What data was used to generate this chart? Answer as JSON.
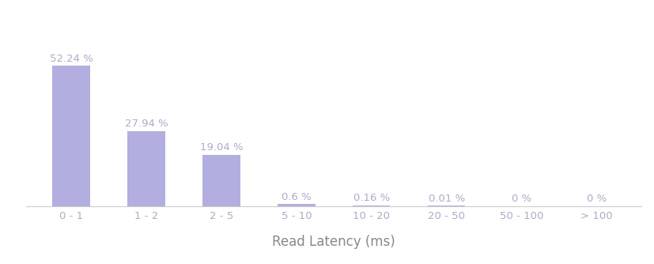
{
  "categories": [
    "0 - 1",
    "1 - 2",
    "2 - 5",
    "5 - 10",
    "10 - 20",
    "20 - 50",
    "50 - 100",
    "> 100"
  ],
  "values": [
    52.24,
    27.94,
    19.04,
    0.6,
    0.16,
    0.01,
    0.0,
    0.0
  ],
  "labels": [
    "52.24 %",
    "27.94 %",
    "19.04 %",
    "0.6 %",
    "0.16 %",
    "0.01 %",
    "0 %",
    "0 %"
  ],
  "bar_color": "#b3aee0",
  "label_color": "#b0aac8",
  "xlabel": "Read Latency (ms)",
  "xlabel_color": "#888888",
  "xlabel_fontsize": 12,
  "tick_color": "#b0aac8",
  "tick_fontsize": 9.5,
  "label_fontsize": 9.5,
  "ylim": [
    0,
    65
  ],
  "background_color": "#ffffff",
  "bar_width": 0.5,
  "figsize": [
    8.28,
    3.34
  ],
  "dpi": 100
}
